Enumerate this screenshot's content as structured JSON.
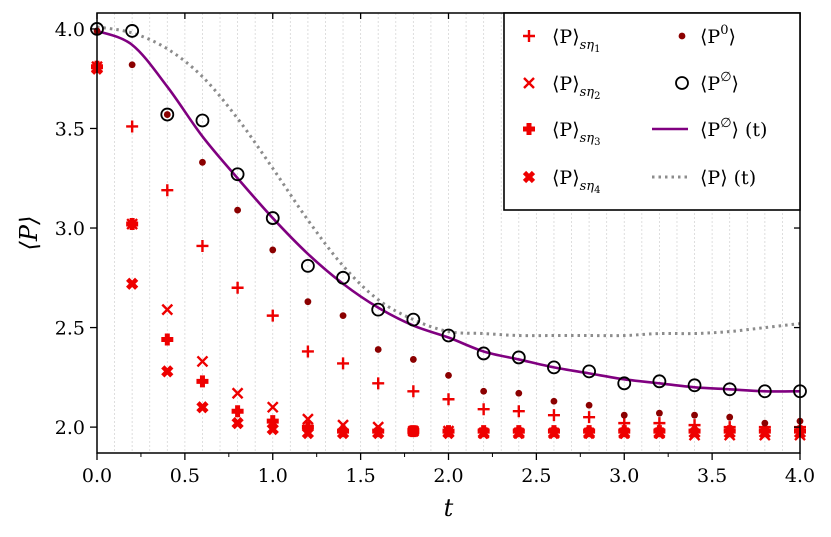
{
  "chart_data": {
    "type": "scatter",
    "xlabel": "t",
    "ylabel": "⟨P⟩",
    "xlim": [
      0,
      4
    ],
    "ylim": [
      1.87,
      4.08
    ],
    "x_ticks": [
      "0.0",
      "0.5",
      "1.0",
      "1.5",
      "2.0",
      "2.5",
      "3.0",
      "3.5",
      "4.0"
    ],
    "y_ticks": [
      "2.0",
      "2.5",
      "3.0",
      "3.5",
      "4.0"
    ],
    "grid": "vertical-minor",
    "legend_position": "top-right",
    "x": [
      0.0,
      0.2,
      0.4,
      0.6,
      0.8,
      1.0,
      1.2,
      1.4,
      1.6,
      1.8,
      2.0,
      2.2,
      2.4,
      2.6,
      2.8,
      3.0,
      3.2,
      3.4,
      3.6,
      3.8,
      4.0
    ],
    "series": [
      {
        "name": "⟨P⟩sη1",
        "marker": "plus",
        "color": "#ee0000",
        "values": [
          3.81,
          3.51,
          3.19,
          2.91,
          2.7,
          2.56,
          2.38,
          2.32,
          2.22,
          2.18,
          2.14,
          2.09,
          2.08,
          2.06,
          2.05,
          2.02,
          2.02,
          2.01,
          2.0,
          2.0,
          2.0
        ]
      },
      {
        "name": "⟨P⟩sη2",
        "marker": "x",
        "color": "#ee0000",
        "values": [
          3.81,
          3.02,
          2.59,
          2.33,
          2.17,
          2.1,
          2.04,
          2.01,
          2.0,
          1.98,
          1.98,
          1.97,
          1.97,
          1.97,
          1.97,
          1.97,
          1.97,
          1.96,
          1.96,
          1.96,
          1.96
        ]
      },
      {
        "name": "⟨P⟩sη3",
        "marker": "thick-plus",
        "color": "#ee0000",
        "values": [
          3.81,
          3.02,
          2.44,
          2.23,
          2.08,
          2.03,
          2.0,
          1.98,
          1.98,
          1.98,
          1.98,
          1.98,
          1.98,
          1.98,
          1.98,
          1.98,
          1.98,
          1.98,
          1.98,
          1.98,
          1.98
        ]
      },
      {
        "name": "⟨P⟩sη4",
        "marker": "thick-x",
        "color": "#ee0000",
        "values": [
          3.8,
          2.72,
          2.28,
          2.1,
          2.02,
          1.99,
          1.97,
          1.97,
          1.97,
          1.98,
          1.97,
          1.97,
          1.97,
          1.97,
          1.97,
          1.97,
          1.97,
          1.97,
          1.97,
          1.97,
          1.97
        ]
      },
      {
        "name": "⟨P0⟩",
        "marker": "dot",
        "color": "#8b0000",
        "values": [
          3.99,
          3.82,
          3.57,
          3.33,
          3.09,
          2.89,
          2.63,
          2.56,
          2.39,
          2.34,
          2.26,
          2.18,
          2.17,
          2.13,
          2.11,
          2.06,
          2.07,
          2.06,
          2.05,
          2.02,
          2.03
        ]
      },
      {
        "name": "⟨P∅⟩",
        "marker": "open-circle",
        "color": "#000000",
        "values": [
          4.0,
          3.99,
          3.57,
          3.54,
          3.27,
          3.05,
          2.81,
          2.75,
          2.59,
          2.54,
          2.46,
          2.37,
          2.35,
          2.3,
          2.28,
          2.22,
          2.23,
          2.21,
          2.19,
          2.18,
          2.18
        ]
      },
      {
        "name": "⟨P∅⟩(t)",
        "marker": "line",
        "color": "#800080",
        "values": [
          3.99,
          3.92,
          3.71,
          3.46,
          3.25,
          3.05,
          2.87,
          2.72,
          2.6,
          2.51,
          2.45,
          2.38,
          2.34,
          2.3,
          2.27,
          2.24,
          2.22,
          2.2,
          2.19,
          2.18,
          2.18
        ]
      },
      {
        "name": "⟨P⟩(t)",
        "marker": "dotted-line",
        "color": "#8c8c8c",
        "values": [
          4.01,
          3.98,
          3.9,
          3.76,
          3.55,
          3.3,
          3.04,
          2.81,
          2.64,
          2.54,
          2.48,
          2.47,
          2.46,
          2.46,
          2.46,
          2.46,
          2.47,
          2.47,
          2.48,
          2.5,
          2.52
        ]
      }
    ],
    "legend_entries": [
      {
        "main": "⟨P⟩",
        "sub": "sη",
        "subsub": "1"
      },
      {
        "main": "⟨P⟩",
        "sub": "sη",
        "subsub": "2"
      },
      {
        "main": "⟨P⟩",
        "sub": "sη",
        "subsub": "3"
      },
      {
        "main": "⟨P⟩",
        "sub": "sη",
        "subsub": "4"
      },
      {
        "main": "⟨P",
        "sup": "0",
        "end": "⟩"
      },
      {
        "main": "⟨P",
        "sup": "∅",
        "end": "⟩"
      },
      {
        "main": "⟨P",
        "sup": "∅",
        "end": "⟩ (t)"
      },
      {
        "main": "⟨P⟩ (t)"
      }
    ]
  }
}
